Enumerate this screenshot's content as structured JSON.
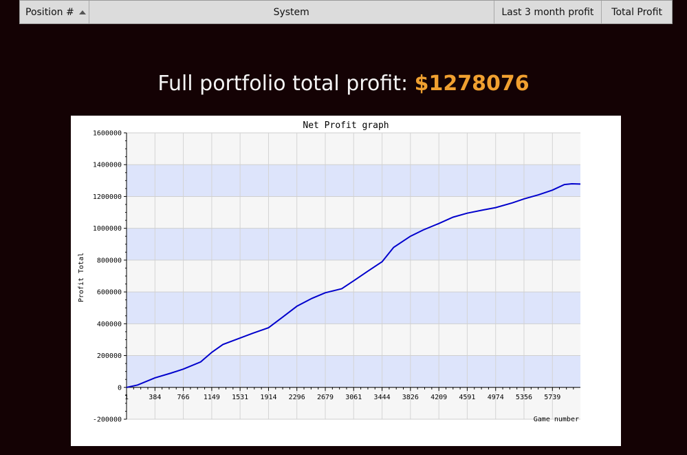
{
  "table": {
    "columns": [
      {
        "label": "Position #",
        "sorted": "ascending"
      },
      {
        "label": "System"
      },
      {
        "label": "Last 3 month profit"
      },
      {
        "label": "Total Profit"
      }
    ]
  },
  "summary": {
    "label": "Full portfolio total profit:",
    "amount": "$1278076"
  },
  "colors": {
    "background": "#140204",
    "amount": "#f0a030",
    "line": "#0000cc",
    "band": "#dde4fb",
    "plot_background": "#f6f6f6"
  },
  "chart_data": {
    "type": "line",
    "title": "Net Profit graph",
    "xlabel": "Game number",
    "ylabel": "Profit Total",
    "xlim": [
      1,
      6116
    ],
    "ylim": [
      -200000,
      1600000
    ],
    "xticks": [
      1,
      384,
      766,
      1149,
      1531,
      1914,
      2296,
      2679,
      3061,
      3444,
      3826,
      4209,
      4591,
      4974,
      5356,
      5739
    ],
    "yticks": [
      -200000,
      0,
      200000,
      400000,
      600000,
      800000,
      1000000,
      1200000,
      1400000,
      1600000
    ],
    "grid": true,
    "legend": "none",
    "series": [
      {
        "x": [
          1,
          150,
          384,
          600,
          766,
          1000,
          1149,
          1300,
          1531,
          1700,
          1914,
          2100,
          2296,
          2500,
          2679,
          2900,
          3061,
          3250,
          3444,
          3600,
          3826,
          4000,
          4209,
          4400,
          4591,
          4800,
          4974,
          5200,
          5356,
          5550,
          5739,
          5900,
          6000,
          6116
        ],
        "y": [
          0,
          15000,
          60000,
          90000,
          115000,
          160000,
          220000,
          270000,
          310000,
          340000,
          375000,
          440000,
          510000,
          560000,
          595000,
          620000,
          670000,
          730000,
          790000,
          880000,
          950000,
          990000,
          1030000,
          1070000,
          1095000,
          1115000,
          1130000,
          1160000,
          1185000,
          1210000,
          1240000,
          1275000,
          1280000,
          1278076
        ]
      }
    ]
  }
}
